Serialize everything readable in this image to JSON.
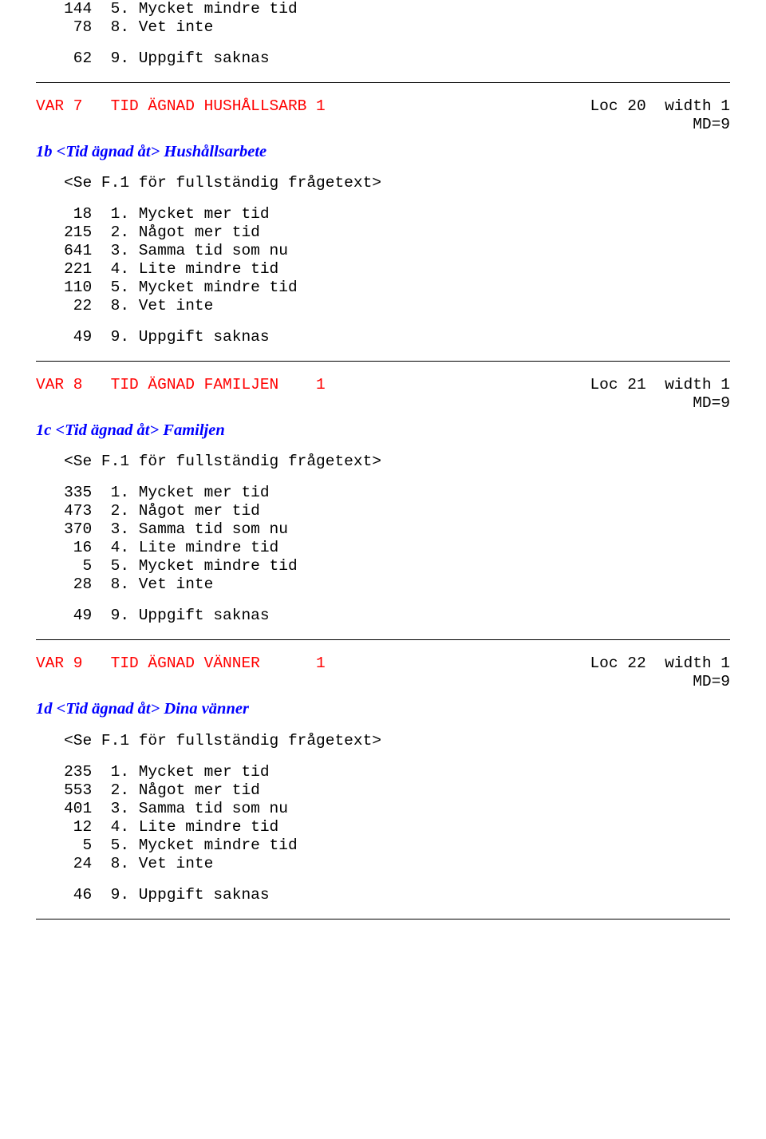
{
  "intro": {
    "rows": [
      {
        "count": "144",
        "code": "5.",
        "label": "Mycket mindre tid"
      },
      {
        "count": " 78",
        "code": "8.",
        "label": "Vet inte"
      }
    ],
    "gap_rows": [
      {
        "count": " 62",
        "code": "9.",
        "label": "Uppgift saknas"
      }
    ]
  },
  "var7": {
    "header_left": "VAR 7   TID ÄGNAD HUSHÅLLSARB 1",
    "header_right_l1": "Loc 20  width 1",
    "header_right_l2": "MD=9",
    "subtitle": "1b <Tid ägnad åt> Hushållsarbete",
    "see": "<Se F.1 för fullständig frågetext>",
    "rows": [
      {
        "count": " 18",
        "code": "1.",
        "label": "Mycket mer tid"
      },
      {
        "count": "215",
        "code": "2.",
        "label": "Något mer tid"
      },
      {
        "count": "641",
        "code": "3.",
        "label": "Samma tid som nu"
      },
      {
        "count": "221",
        "code": "4.",
        "label": "Lite mindre tid"
      },
      {
        "count": "110",
        "code": "5.",
        "label": "Mycket mindre tid"
      },
      {
        "count": " 22",
        "code": "8.",
        "label": "Vet inte"
      }
    ],
    "gap_rows": [
      {
        "count": " 49",
        "code": "9.",
        "label": "Uppgift saknas"
      }
    ]
  },
  "var8": {
    "header_left": "VAR 8   TID ÄGNAD FAMILJEN    1",
    "header_right_l1": "Loc 21  width 1",
    "header_right_l2": "MD=9",
    "subtitle": "1c <Tid ägnad åt> Familjen",
    "see": "<Se F.1 för fullständig frågetext>",
    "rows": [
      {
        "count": "335",
        "code": "1.",
        "label": "Mycket mer tid"
      },
      {
        "count": "473",
        "code": "2.",
        "label": "Något mer tid"
      },
      {
        "count": "370",
        "code": "3.",
        "label": "Samma tid som nu"
      },
      {
        "count": " 16",
        "code": "4.",
        "label": "Lite mindre tid"
      },
      {
        "count": "  5",
        "code": "5.",
        "label": "Mycket mindre tid"
      },
      {
        "count": " 28",
        "code": "8.",
        "label": "Vet inte"
      }
    ],
    "gap_rows": [
      {
        "count": " 49",
        "code": "9.",
        "label": "Uppgift saknas"
      }
    ]
  },
  "var9": {
    "header_left": "VAR 9   TID ÄGNAD VÄNNER      1",
    "header_right_l1": "Loc 22  width 1",
    "header_right_l2": "MD=9",
    "subtitle": "1d <Tid ägnad åt> Dina vänner",
    "see": "<Se F.1 för fullständig frågetext>",
    "rows": [
      {
        "count": "235",
        "code": "1.",
        "label": "Mycket mer tid"
      },
      {
        "count": "553",
        "code": "2.",
        "label": "Något mer tid"
      },
      {
        "count": "401",
        "code": "3.",
        "label": "Samma tid som nu"
      },
      {
        "count": " 12",
        "code": "4.",
        "label": "Lite mindre tid"
      },
      {
        "count": "  5",
        "code": "5.",
        "label": "Mycket mindre tid"
      },
      {
        "count": " 24",
        "code": "8.",
        "label": "Vet inte"
      }
    ],
    "gap_rows": [
      {
        "count": " 46",
        "code": "9.",
        "label": "Uppgift saknas"
      }
    ]
  }
}
